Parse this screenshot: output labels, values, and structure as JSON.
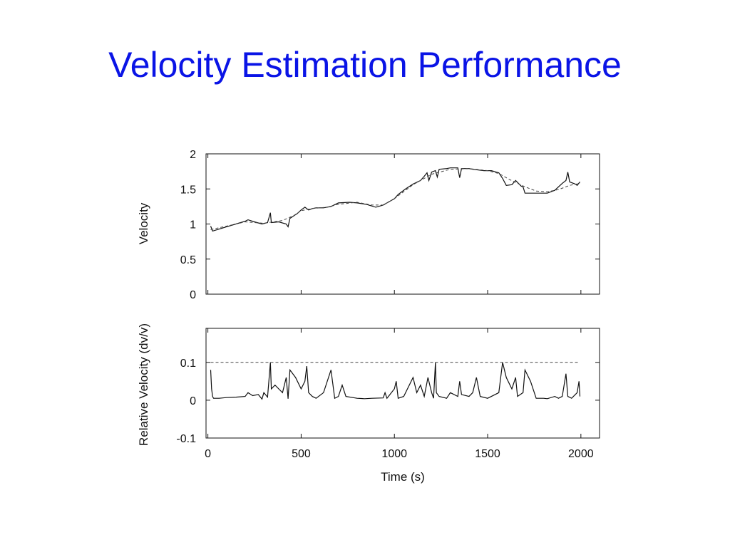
{
  "slide": {
    "title": "Velocity Estimation Performance"
  },
  "chart_data": [
    {
      "type": "line",
      "ylabel": "Velocity",
      "ylim": [
        0,
        2
      ],
      "xlim": [
        -10,
        2100
      ],
      "yticks": [
        "0",
        "0.5",
        "1",
        "1.5",
        "2"
      ],
      "ytick_values": [
        0,
        0.5,
        1,
        1.5,
        2
      ],
      "xtick_values": [
        0,
        500,
        1000,
        1500,
        2000
      ],
      "grid": false,
      "series": [
        {
          "style": "solid",
          "color": "#111111",
          "points": [
            [
              15,
              0.97
            ],
            [
              25,
              0.9
            ],
            [
              50,
              0.92
            ],
            [
              100,
              0.96
            ],
            [
              150,
              1.0
            ],
            [
              200,
              1.04
            ],
            [
              215,
              1.06
            ],
            [
              250,
              1.03
            ],
            [
              290,
              1.0
            ],
            [
              320,
              1.02
            ],
            [
              335,
              1.16
            ],
            [
              340,
              1.02
            ],
            [
              380,
              1.03
            ],
            [
              420,
              1.0
            ],
            [
              430,
              0.96
            ],
            [
              440,
              1.08
            ],
            [
              480,
              1.15
            ],
            [
              500,
              1.2
            ],
            [
              520,
              1.24
            ],
            [
              540,
              1.2
            ],
            [
              560,
              1.22
            ],
            [
              580,
              1.23
            ],
            [
              620,
              1.23
            ],
            [
              660,
              1.25
            ],
            [
              700,
              1.3
            ],
            [
              760,
              1.31
            ],
            [
              800,
              1.3
            ],
            [
              850,
              1.28
            ],
            [
              900,
              1.24
            ],
            [
              940,
              1.27
            ],
            [
              960,
              1.3
            ],
            [
              1000,
              1.36
            ],
            [
              1020,
              1.42
            ],
            [
              1060,
              1.5
            ],
            [
              1100,
              1.57
            ],
            [
              1140,
              1.62
            ],
            [
              1160,
              1.68
            ],
            [
              1175,
              1.73
            ],
            [
              1185,
              1.62
            ],
            [
              1200,
              1.74
            ],
            [
              1220,
              1.76
            ],
            [
              1230,
              1.67
            ],
            [
              1240,
              1.78
            ],
            [
              1280,
              1.79
            ],
            [
              1300,
              1.8
            ],
            [
              1340,
              1.8
            ],
            [
              1350,
              1.66
            ],
            [
              1360,
              1.79
            ],
            [
              1400,
              1.79
            ],
            [
              1420,
              1.78
            ],
            [
              1450,
              1.77
            ],
            [
              1480,
              1.76
            ],
            [
              1520,
              1.76
            ],
            [
              1560,
              1.73
            ],
            [
              1580,
              1.65
            ],
            [
              1600,
              1.55
            ],
            [
              1630,
              1.56
            ],
            [
              1650,
              1.62
            ],
            [
              1680,
              1.54
            ],
            [
              1690,
              1.53
            ],
            [
              1700,
              1.44
            ],
            [
              1750,
              1.44
            ],
            [
              1820,
              1.44
            ],
            [
              1860,
              1.48
            ],
            [
              1900,
              1.58
            ],
            [
              1920,
              1.62
            ],
            [
              1930,
              1.74
            ],
            [
              1940,
              1.6
            ],
            [
              1970,
              1.57
            ],
            [
              1980,
              1.55
            ],
            [
              1995,
              1.6
            ]
          ]
        },
        {
          "style": "dashed",
          "color": "#444444",
          "points": [
            [
              15,
              0.92
            ],
            [
              100,
              0.97
            ],
            [
              200,
              1.03
            ],
            [
              300,
              1.01
            ],
            [
              400,
              1.05
            ],
            [
              460,
              1.12
            ],
            [
              500,
              1.19
            ],
            [
              560,
              1.22
            ],
            [
              640,
              1.24
            ],
            [
              700,
              1.28
            ],
            [
              800,
              1.31
            ],
            [
              880,
              1.27
            ],
            [
              940,
              1.27
            ],
            [
              1000,
              1.36
            ],
            [
              1100,
              1.56
            ],
            [
              1200,
              1.71
            ],
            [
              1300,
              1.78
            ],
            [
              1400,
              1.79
            ],
            [
              1500,
              1.76
            ],
            [
              1560,
              1.72
            ],
            [
              1620,
              1.63
            ],
            [
              1700,
              1.53
            ],
            [
              1760,
              1.47
            ],
            [
              1820,
              1.46
            ],
            [
              1880,
              1.49
            ],
            [
              1940,
              1.55
            ],
            [
              1995,
              1.58
            ]
          ]
        }
      ]
    },
    {
      "type": "line",
      "xlabel": "Time (s)",
      "ylabel": "Relative Velocity (dv/v)",
      "ylim": [
        -0.1,
        0.19
      ],
      "xlim": [
        -10,
        2100
      ],
      "yticks": [
        "-0.1",
        "0",
        "0.1"
      ],
      "ytick_values": [
        -0.1,
        0,
        0.1
      ],
      "xticks": [
        "0",
        "500",
        "1000",
        "1500",
        "2000"
      ],
      "xtick_values": [
        0,
        500,
        1000,
        1500,
        2000
      ],
      "grid": false,
      "series": [
        {
          "style": "solid",
          "color": "#111111",
          "points": [
            [
              15,
              0.08
            ],
            [
              20,
              0.03
            ],
            [
              25,
              0.01
            ],
            [
              30,
              0.005
            ],
            [
              60,
              0.005
            ],
            [
              100,
              0.007
            ],
            [
              150,
              0.008
            ],
            [
              200,
              0.01
            ],
            [
              215,
              0.02
            ],
            [
              240,
              0.012
            ],
            [
              270,
              0.015
            ],
            [
              290,
              0.003
            ],
            [
              300,
              0.02
            ],
            [
              320,
              0.008
            ],
            [
              335,
              0.1
            ],
            [
              340,
              0.03
            ],
            [
              360,
              0.04
            ],
            [
              380,
              0.03
            ],
            [
              400,
              0.02
            ],
            [
              420,
              0.06
            ],
            [
              430,
              0.004
            ],
            [
              440,
              0.08
            ],
            [
              470,
              0.06
            ],
            [
              500,
              0.03
            ],
            [
              520,
              0.05
            ],
            [
              530,
              0.09
            ],
            [
              540,
              0.02
            ],
            [
              560,
              0.01
            ],
            [
              580,
              0.005
            ],
            [
              620,
              0.02
            ],
            [
              660,
              0.08
            ],
            [
              680,
              0.005
            ],
            [
              700,
              0.01
            ],
            [
              720,
              0.04
            ],
            [
              740,
              0.01
            ],
            [
              800,
              0.005
            ],
            [
              840,
              0.004
            ],
            [
              880,
              0.005
            ],
            [
              940,
              0.006
            ],
            [
              950,
              0.02
            ],
            [
              960,
              0.005
            ],
            [
              1000,
              0.03
            ],
            [
              1010,
              0.05
            ],
            [
              1020,
              0.005
            ],
            [
              1050,
              0.01
            ],
            [
              1100,
              0.06
            ],
            [
              1120,
              0.02
            ],
            [
              1140,
              0.04
            ],
            [
              1160,
              0.01
            ],
            [
              1180,
              0.06
            ],
            [
              1200,
              0.02
            ],
            [
              1210,
              0.005
            ],
            [
              1220,
              0.1
            ],
            [
              1225,
              0.02
            ],
            [
              1240,
              0.01
            ],
            [
              1280,
              0.005
            ],
            [
              1300,
              0.02
            ],
            [
              1340,
              0.01
            ],
            [
              1350,
              0.05
            ],
            [
              1360,
              0.015
            ],
            [
              1400,
              0.01
            ],
            [
              1420,
              0.02
            ],
            [
              1440,
              0.06
            ],
            [
              1460,
              0.01
            ],
            [
              1500,
              0.005
            ],
            [
              1560,
              0.02
            ],
            [
              1580,
              0.1
            ],
            [
              1600,
              0.06
            ],
            [
              1630,
              0.03
            ],
            [
              1650,
              0.06
            ],
            [
              1660,
              0.01
            ],
            [
              1690,
              0.02
            ],
            [
              1700,
              0.08
            ],
            [
              1730,
              0.05
            ],
            [
              1760,
              0.005
            ],
            [
              1800,
              0.005
            ],
            [
              1820,
              0.004
            ],
            [
              1860,
              0.01
            ],
            [
              1880,
              0.005
            ],
            [
              1900,
              0.01
            ],
            [
              1920,
              0.07
            ],
            [
              1930,
              0.01
            ],
            [
              1950,
              0.005
            ],
            [
              1980,
              0.02
            ],
            [
              1990,
              0.05
            ],
            [
              1995,
              0.01
            ]
          ]
        },
        {
          "style": "dashed",
          "color": "#444444",
          "points": [
            [
              15,
              0.1
            ],
            [
              1995,
              0.1
            ]
          ]
        }
      ]
    }
  ]
}
